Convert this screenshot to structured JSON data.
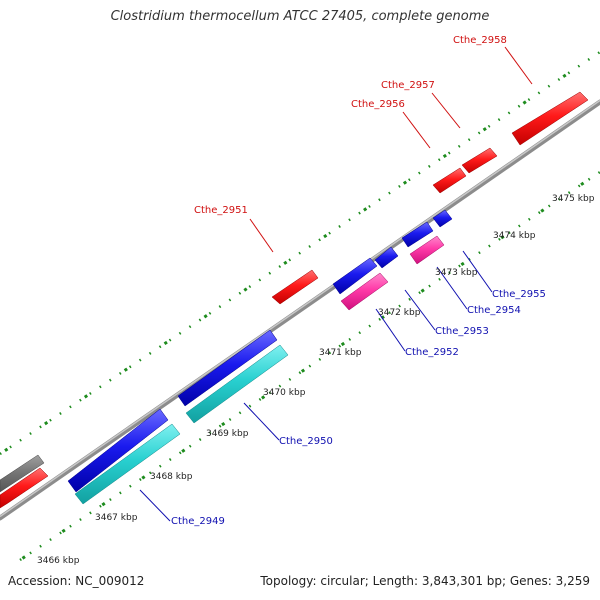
{
  "title": "Clostridium thermocellum ATCC 27405, complete genome",
  "footer": {
    "accession": "Accession: NC_009012",
    "summary": "Topology: circular; Length: 3,843,301 bp; Genes: 3,259"
  },
  "colors": {
    "background": "#ffffff",
    "backbone": "#8c8c8c",
    "tick": "#208a20",
    "forward_gene": "#ff2020",
    "forward_gene_other": "#777777",
    "reverse_gene": "#2020e0",
    "reverse_rna": "#ff3faf",
    "reverse_cyan": "#28d0d0",
    "forward_label": "#d01010",
    "reverse_label": "#1010b0",
    "ruler_label": "#222222"
  },
  "ruler": {
    "labels": [
      "3466 kbp",
      "3467 kbp",
      "3468 kbp",
      "3469 kbp",
      "3470 kbp",
      "3471 kbp",
      "3472 kbp",
      "3473 kbp",
      "3474 kbp",
      "3475 kbp"
    ]
  },
  "genes": {
    "forward_labels": [
      "Cthe_2951",
      "Cthe_2956",
      "Cthe_2957",
      "Cthe_2958"
    ],
    "reverse_labels": [
      "Cthe_2949",
      "Cthe_2950",
      "Cthe_2952",
      "Cthe_2953",
      "Cthe_2954",
      "Cthe_2955"
    ]
  }
}
